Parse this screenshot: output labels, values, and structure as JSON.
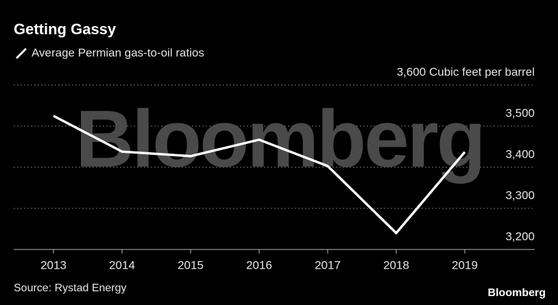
{
  "chart_data": {
    "type": "line",
    "title": "Getting Gassy",
    "watermark": "Bloomberg",
    "categories": [
      "2013",
      "2014",
      "2015",
      "2016",
      "2017",
      "2018",
      "2019"
    ],
    "series": [
      {
        "name": "Average Permian gas-to-oil ratios",
        "color": "#ffffff",
        "values": [
          3525,
          3438,
          3427,
          3467,
          3403,
          3240,
          3437
        ]
      }
    ],
    "ylim": [
      3200,
      3600
    ],
    "yticks": [
      {
        "value": 3200,
        "label": "3,200"
      },
      {
        "value": 3300,
        "label": "3,300"
      },
      {
        "value": 3400,
        "label": "3,400"
      },
      {
        "value": 3500,
        "label": "3,500"
      },
      {
        "value": 3600,
        "label": "3,600 Cubic feet per barrel"
      }
    ],
    "grid": true,
    "source": "Source: Rystad Energy",
    "brand": "Bloomberg"
  }
}
